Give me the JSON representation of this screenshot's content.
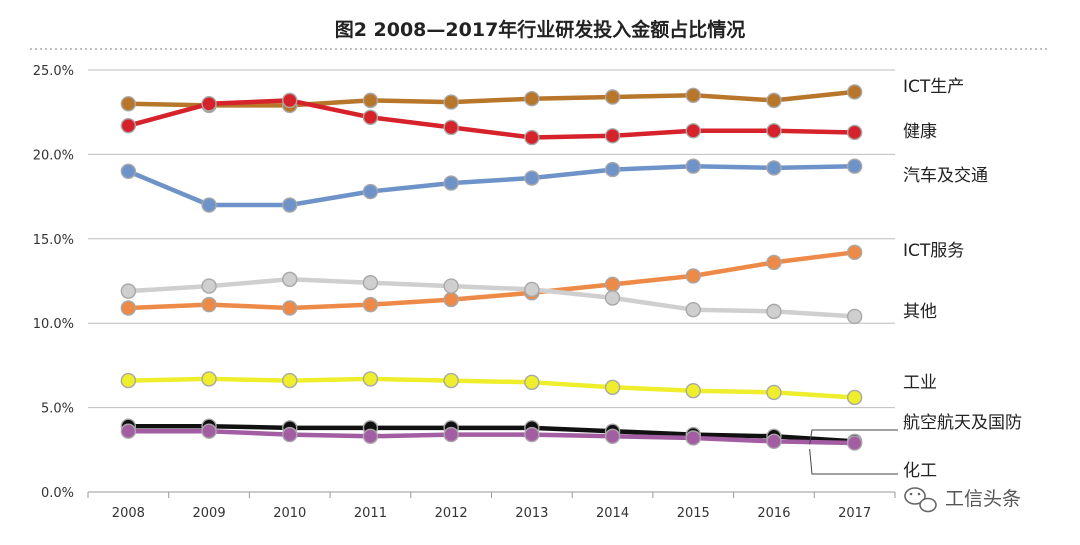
{
  "colors": {
    "ICT生产": "#b8762b",
    "健康": "#d6222a",
    "汽车及交通": "#6e93c8",
    "ICT服务": "#ee8a48",
    "其他": "#cfcfcf",
    "工业": "#eeee2c",
    "航空航天及国防": "#111111",
    "化工": "#a35da3"
  },
  "watermark": "工信头条",
  "chart_data": {
    "type": "line",
    "title": "图2  2008—2017年行业研发投入金额占比情况",
    "xlabel": "",
    "ylabel": "",
    "x": [
      "2008",
      "2009",
      "2010",
      "2011",
      "2012",
      "2013",
      "2014",
      "2015",
      "2016",
      "2017"
    ],
    "yticks": [
      "0.0%",
      "5.0%",
      "10.0%",
      "15.0%",
      "20.0%",
      "25.0%"
    ],
    "ylim": [
      0,
      25
    ],
    "grid": true,
    "legend": "labels at line ends (right)",
    "series": [
      {
        "name": "ICT生产",
        "values": [
          23.0,
          22.9,
          22.9,
          23.2,
          23.1,
          23.3,
          23.4,
          23.5,
          23.2,
          23.7
        ]
      },
      {
        "name": "健康",
        "values": [
          21.7,
          23.0,
          23.2,
          22.2,
          21.6,
          21.0,
          21.1,
          21.4,
          21.4,
          21.3
        ]
      },
      {
        "name": "汽车及交通",
        "values": [
          19.0,
          17.0,
          17.0,
          17.8,
          18.3,
          18.6,
          19.1,
          19.3,
          19.2,
          19.3
        ]
      },
      {
        "name": "ICT服务",
        "values": [
          10.9,
          11.1,
          10.9,
          11.1,
          11.4,
          11.8,
          12.3,
          12.8,
          13.6,
          14.2
        ]
      },
      {
        "name": "其他",
        "values": [
          11.9,
          12.2,
          12.6,
          12.4,
          12.2,
          12.0,
          11.5,
          10.8,
          10.7,
          10.4
        ]
      },
      {
        "name": "工业",
        "values": [
          6.6,
          6.7,
          6.6,
          6.7,
          6.6,
          6.5,
          6.2,
          6.0,
          5.9,
          5.6
        ]
      },
      {
        "name": "航空航天及国防",
        "values": [
          3.9,
          3.9,
          3.8,
          3.8,
          3.8,
          3.8,
          3.6,
          3.4,
          3.3,
          3.0
        ]
      },
      {
        "name": "化工",
        "values": [
          3.6,
          3.6,
          3.4,
          3.3,
          3.4,
          3.4,
          3.3,
          3.2,
          3.0,
          2.9
        ]
      }
    ]
  }
}
